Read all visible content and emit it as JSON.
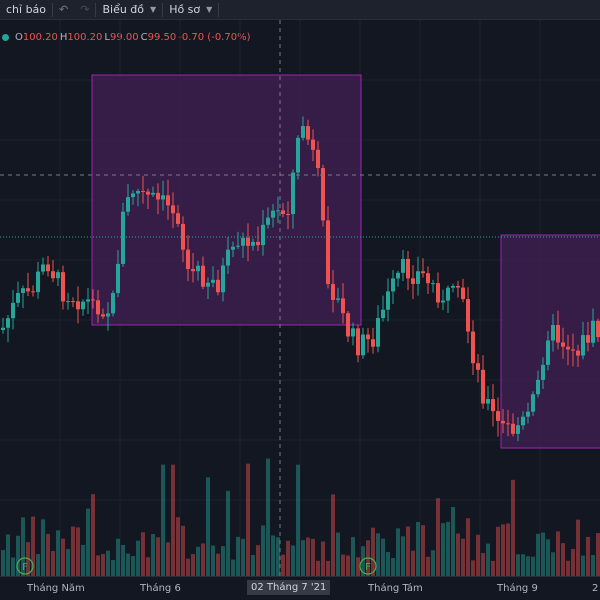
{
  "toolbar": {
    "indicators_label": "chỉ báo",
    "undo_icon": "undo-icon",
    "redo_icon": "redo-icon",
    "chart_menu_label": "Biểu đồ",
    "profile_menu_label": "Hồ sơ"
  },
  "legend": {
    "open_key": "O",
    "open": "100.20",
    "high_key": "H",
    "high": "100.20",
    "low_key": "L",
    "low": "99.00",
    "close_key": "C",
    "close": "99.50",
    "change": "-0.70 (-0.70%)"
  },
  "xaxis": {
    "ticks": [
      "Tháng Năm",
      "Tháng 6",
      "Tháng Tám",
      "Tháng 9",
      "2"
    ],
    "crosshair_label": "02 Tháng 7 '21"
  },
  "earnings_markers": [
    "F",
    "F"
  ],
  "colors": {
    "background": "#131722",
    "up": "#26a69a",
    "down": "#ef5350",
    "rect_fill": "#3d1f4f",
    "rect_border": "#9c27b0"
  },
  "chart_data": {
    "type": "candlestick",
    "x": [
      "Tháng Năm",
      "Tháng 6",
      "Tháng Tám",
      "Tháng 9"
    ],
    "last_ohlc": {
      "open": 100.2,
      "high": 100.2,
      "low": 99.0,
      "close": 99.5
    },
    "grid": true
  }
}
